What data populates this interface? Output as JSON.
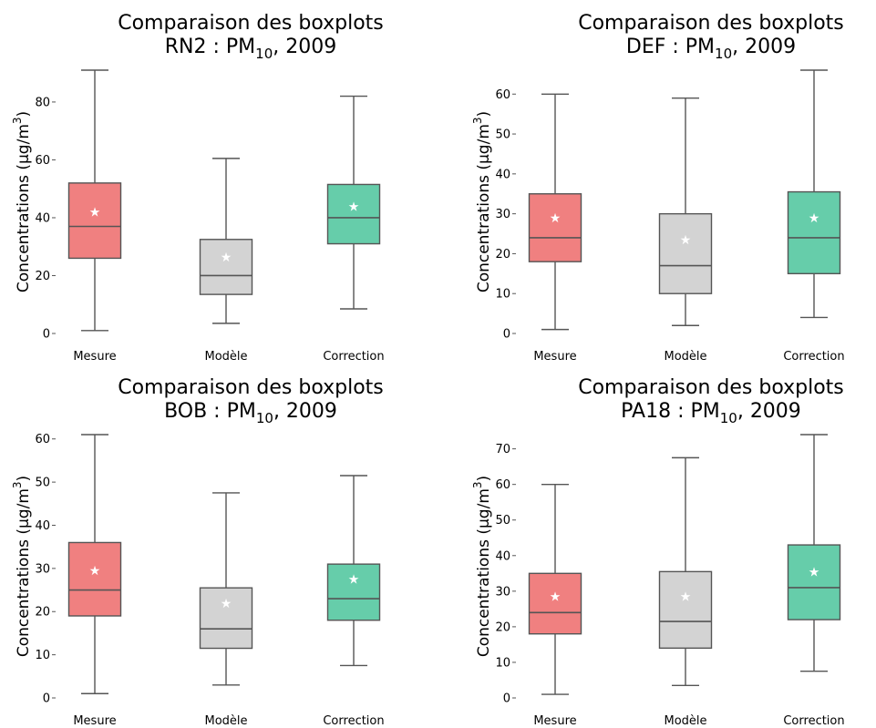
{
  "colors": {
    "mesure": "#f08080",
    "modele": "#d3d3d3",
    "correction": "#66cdaa",
    "line": "#555555",
    "mean_marker": "#ffffff"
  },
  "chart_data": [
    {
      "type": "box",
      "title_line1": "Comparaison des boxplots",
      "title_prefix": "RN2 : PM",
      "title_sub": "10",
      "title_suffix": ", 2009",
      "ylabel_prefix": "Concentrations (µg/m",
      "ylabel_sup": "3",
      "ylabel_suffix": ")",
      "ylim": [
        0,
        91
      ],
      "yticks": [
        0,
        20,
        40,
        60,
        80
      ],
      "mean_marker": "★",
      "categories": [
        "Mesure",
        "Modèle",
        "Correction"
      ],
      "boxes": [
        {
          "name": "Mesure",
          "whisker_low": 1,
          "q1": 26,
          "median": 37,
          "q3": 52,
          "whisker_high": 91,
          "mean": 42
        },
        {
          "name": "Modèle",
          "whisker_low": 3.5,
          "q1": 13.5,
          "median": 20,
          "q3": 32.5,
          "whisker_high": 60.5,
          "mean": 26.5
        },
        {
          "name": "Correction",
          "whisker_low": 8.5,
          "q1": 31,
          "median": 40,
          "q3": 51.5,
          "whisker_high": 82,
          "mean": 44
        }
      ]
    },
    {
      "type": "box",
      "title_line1": "Comparaison des boxplots",
      "title_prefix": "DEF : PM",
      "title_sub": "10",
      "title_suffix": ", 2009",
      "ylabel_prefix": "Concentrations (µg/m",
      "ylabel_sup": "3",
      "ylabel_suffix": ")",
      "ylim": [
        0,
        66
      ],
      "yticks": [
        0,
        10,
        20,
        30,
        40,
        50,
        60
      ],
      "mean_marker": "★",
      "categories": [
        "Mesure",
        "Modèle",
        "Correction"
      ],
      "boxes": [
        {
          "name": "Mesure",
          "whisker_low": 1,
          "q1": 18,
          "median": 24,
          "q3": 35,
          "whisker_high": 60,
          "mean": 29
        },
        {
          "name": "Modèle",
          "whisker_low": 2,
          "q1": 10,
          "median": 17,
          "q3": 30,
          "whisker_high": 59,
          "mean": 23.5
        },
        {
          "name": "Correction",
          "whisker_low": 4,
          "q1": 15,
          "median": 24,
          "q3": 35.5,
          "whisker_high": 66,
          "mean": 29
        }
      ]
    },
    {
      "type": "box",
      "title_line1": "Comparaison des boxplots",
      "title_prefix": "BOB : PM",
      "title_sub": "10",
      "title_suffix": ", 2009",
      "ylabel_prefix": "Concentrations (µg/m",
      "ylabel_sup": "3",
      "ylabel_suffix": ")",
      "ylim": [
        0,
        61
      ],
      "yticks": [
        0,
        10,
        20,
        30,
        40,
        50,
        60
      ],
      "mean_marker": "★",
      "categories": [
        "Mesure",
        "Modèle",
        "Correction"
      ],
      "boxes": [
        {
          "name": "Mesure",
          "whisker_low": 1,
          "q1": 19,
          "median": 25,
          "q3": 36,
          "whisker_high": 61,
          "mean": 29.5
        },
        {
          "name": "Modèle",
          "whisker_low": 3,
          "q1": 11.5,
          "median": 16,
          "q3": 25.5,
          "whisker_high": 47.5,
          "mean": 22
        },
        {
          "name": "Correction",
          "whisker_low": 7.5,
          "q1": 18,
          "median": 23,
          "q3": 31,
          "whisker_high": 51.5,
          "mean": 27.5
        }
      ]
    },
    {
      "type": "box",
      "title_line1": "Comparaison des boxplots",
      "title_prefix": "PA18 : PM",
      "title_sub": "10",
      "title_suffix": ", 2009",
      "ylabel_prefix": "Concentrations (µg/m",
      "ylabel_sup": "3",
      "ylabel_suffix": ")",
      "ylim": [
        0,
        74
      ],
      "yticks": [
        0,
        10,
        20,
        30,
        40,
        50,
        60,
        70
      ],
      "mean_marker": "★",
      "categories": [
        "Mesure",
        "Modèle",
        "Correction"
      ],
      "boxes": [
        {
          "name": "Mesure",
          "whisker_low": 1,
          "q1": 18,
          "median": 24,
          "q3": 35,
          "whisker_high": 60,
          "mean": 28.5
        },
        {
          "name": "Modèle",
          "whisker_low": 3.5,
          "q1": 14,
          "median": 21.5,
          "q3": 35.5,
          "whisker_high": 67.5,
          "mean": 28.5
        },
        {
          "name": "Correction",
          "whisker_low": 7.5,
          "q1": 22,
          "median": 31,
          "q3": 43,
          "whisker_high": 74,
          "mean": 35.5
        }
      ]
    }
  ]
}
